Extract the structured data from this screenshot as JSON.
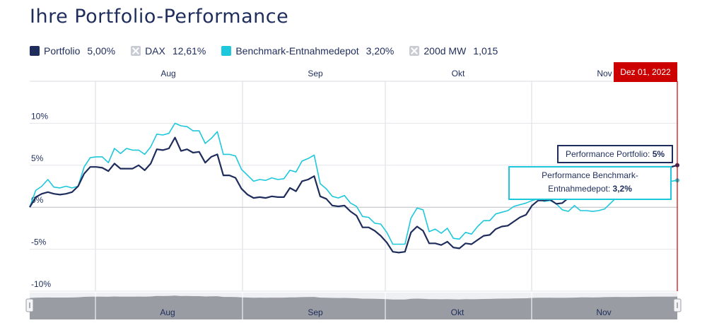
{
  "title": "Ihre Portfolio-Performance",
  "legend": [
    {
      "label": "Portfolio",
      "value": "5,00%",
      "color": "#1f2d5c",
      "active": true
    },
    {
      "label": "DAX",
      "value": "12,61%",
      "color": "#c9ccd4",
      "active": false
    },
    {
      "label": "Benchmark-Entnahmedepot",
      "value": "3,20%",
      "color": "#1ec8dc",
      "active": true
    },
    {
      "label": "200d MW",
      "value": "1,015",
      "color": "#c9ccd4",
      "active": false
    }
  ],
  "crosshair": {
    "date": "Dez 01, 2022",
    "color": "#cc0000"
  },
  "tooltips": {
    "portfolio": {
      "label": "Performance Portfolio:",
      "value": "5%"
    },
    "benchmark": {
      "label_line1": "Performance Benchmark-",
      "label_line2": "Entnahmedepot:",
      "value": "3,2%"
    }
  },
  "chart_data": {
    "type": "line",
    "x_axis_labels": [
      "Aug",
      "Sep",
      "Okt",
      "Nov"
    ],
    "y_ticks": [
      {
        "value": 10,
        "label": "10%"
      },
      {
        "value": 5,
        "label": "5%"
      },
      {
        "value": 0,
        "label": "0%"
      },
      {
        "value": -5,
        "label": "-5%"
      },
      {
        "value": -10,
        "label": "-10%"
      }
    ],
    "ylim": [
      -10,
      15
    ],
    "navigator_labels": [
      "Aug",
      "Sep",
      "Okt",
      "Nov"
    ],
    "series": [
      {
        "name": "Portfolio",
        "color": "#1f2d5c",
        "values": [
          0.0,
          1.2,
          1.6,
          1.8,
          1.6,
          1.5,
          1.6,
          1.8,
          2.5,
          4.0,
          4.8,
          4.8,
          4.7,
          4.3,
          5.2,
          4.6,
          4.6,
          4.6,
          5.0,
          4.4,
          5.2,
          6.9,
          6.8,
          7.0,
          8.3,
          6.7,
          6.9,
          6.5,
          6.6,
          5.3,
          6.0,
          6.3,
          3.8,
          3.8,
          3.5,
          2.2,
          1.5,
          1.1,
          1.2,
          1.1,
          1.3,
          1.2,
          1.2,
          2.3,
          1.9,
          3.1,
          3.3,
          3.7,
          1.3,
          1.0,
          0.2,
          0.1,
          0.2,
          -0.5,
          -1.0,
          -2.4,
          -2.4,
          -2.8,
          -3.4,
          -4.2,
          -5.3,
          -5.4,
          -5.3,
          -3.0,
          -2.3,
          -2.8,
          -4.3,
          -4.3,
          -4.5,
          -4.1,
          -4.8,
          -4.9,
          -4.3,
          -4.4,
          -3.9,
          -3.4,
          -3.3,
          -2.6,
          -2.3,
          -2.2,
          -1.7,
          -1.2,
          -0.9,
          0.2,
          0.8,
          0.8,
          0.9,
          0.4,
          0.5,
          1.1,
          1.3,
          2.0,
          2.0,
          1.8,
          2.3,
          3.0,
          3.4,
          3.8,
          3.4,
          3.6,
          3.8,
          4.0,
          4.3,
          4.4,
          4.6,
          4.7,
          4.8,
          5.0
        ]
      },
      {
        "name": "Benchmark-Entnahmedepot",
        "color": "#1ec8dc",
        "values": [
          0.0,
          2.0,
          2.5,
          3.3,
          2.4,
          2.3,
          2.5,
          2.3,
          2.5,
          4.8,
          5.9,
          6.0,
          6.0,
          5.3,
          7.0,
          6.4,
          7.0,
          6.8,
          6.8,
          6.3,
          7.2,
          8.7,
          8.6,
          8.8,
          10.0,
          9.7,
          9.6,
          9.1,
          9.1,
          7.6,
          8.2,
          9.0,
          6.3,
          6.3,
          6.1,
          4.5,
          3.8,
          3.1,
          3.3,
          3.2,
          3.5,
          3.3,
          3.4,
          4.4,
          4.2,
          5.5,
          5.8,
          6.2,
          2.8,
          2.2,
          1.3,
          1.1,
          1.4,
          0.5,
          0.1,
          -1.1,
          -1.2,
          -1.9,
          -2.0,
          -3.0,
          -4.4,
          -4.4,
          -4.4,
          -1.3,
          -0.1,
          -0.3,
          -2.9,
          -2.6,
          -3.1,
          -2.5,
          -3.7,
          -3.8,
          -3.0,
          -3.2,
          -2.3,
          -1.6,
          -1.6,
          -0.8,
          -0.6,
          -0.4,
          0.1,
          0.3,
          0.5,
          0.8,
          1.0,
          0.7,
          0.8,
          0.4,
          -0.3,
          -0.5,
          0.2,
          -0.4,
          -0.4,
          -0.5,
          -0.4,
          -0.2,
          0.5,
          1.2,
          1.6,
          2.0,
          1.8,
          2.1,
          2.5,
          2.6,
          2.9,
          3.0,
          3.1,
          3.2
        ]
      }
    ]
  }
}
